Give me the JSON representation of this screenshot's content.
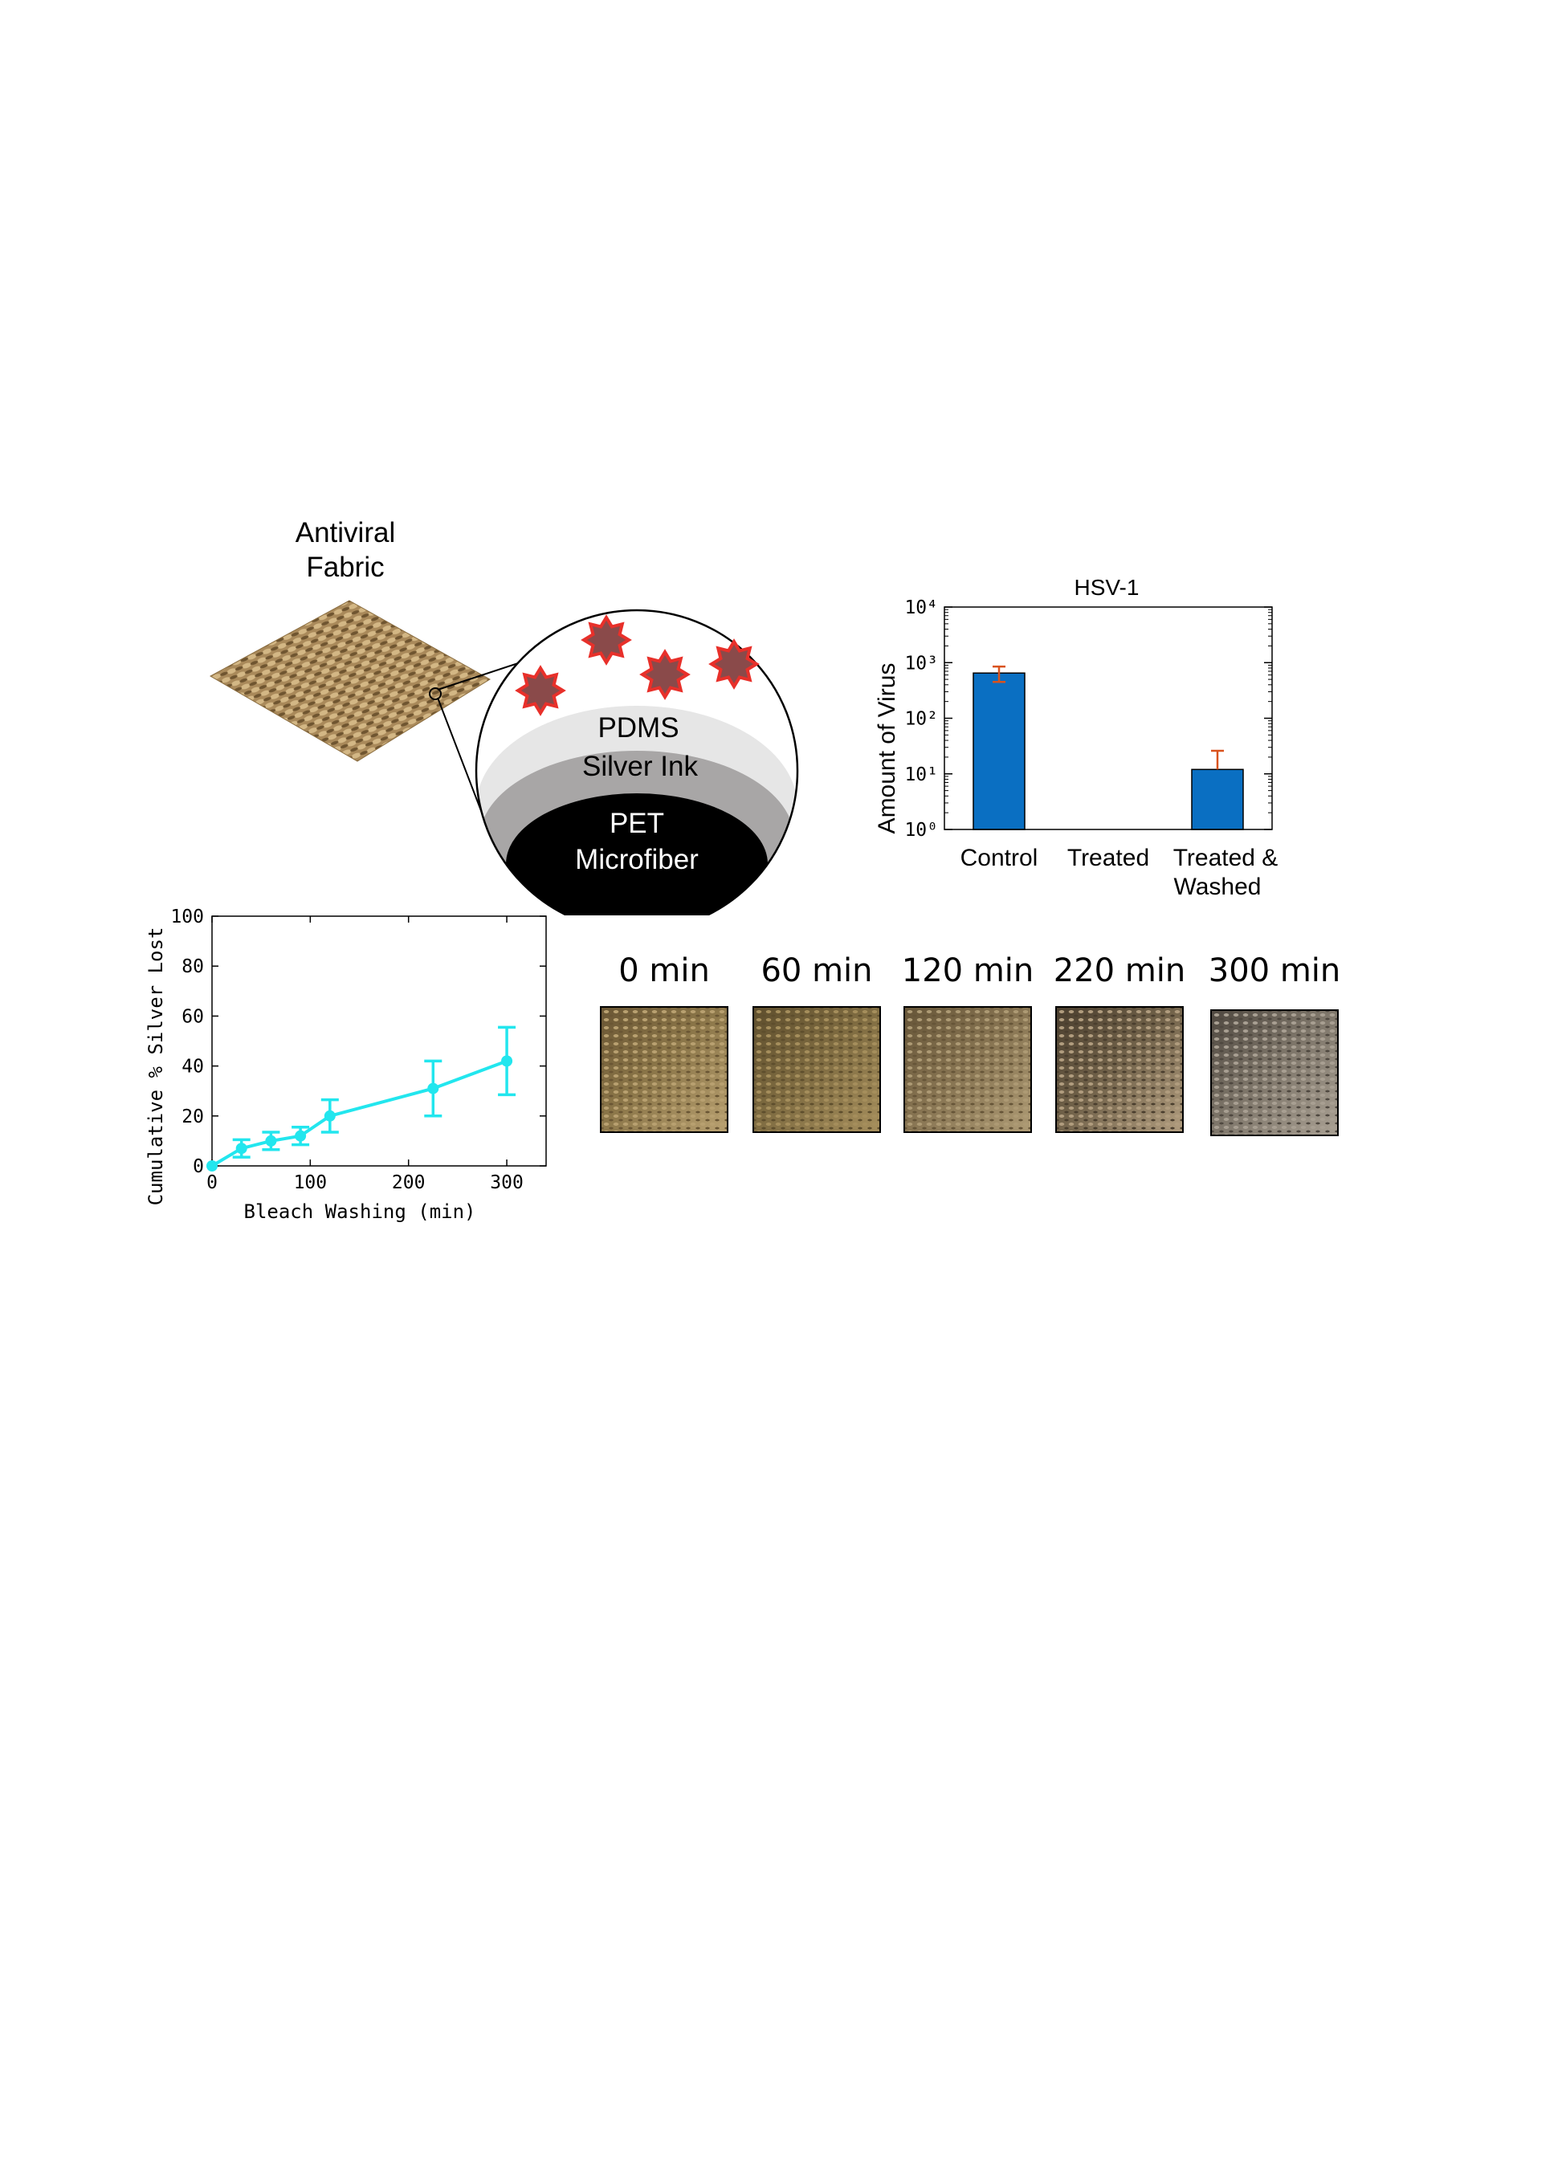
{
  "figure": {
    "fabric_title_line1": "Antiviral",
    "fabric_title_line2": "Fabric",
    "layers": {
      "top": "PDMS",
      "middle": "Silver Ink",
      "core_line1": "PET",
      "core_line2": "Microfiber"
    },
    "virus_color": "#e8302a",
    "virus_fill": "#8a4a4a"
  },
  "chart_data": [
    {
      "type": "bar",
      "title": "HSV-1",
      "ylabel": "Amount of Virus",
      "yscale": "log",
      "ylim": [
        1,
        10000
      ],
      "y_tick_labels": [
        "10⁰",
        "10¹",
        "10²",
        "10³",
        "10⁴"
      ],
      "categories": [
        "Control",
        "Treated",
        "Treated &\nWashed"
      ],
      "category_line1": [
        "Control",
        "Treated",
        "Treated &"
      ],
      "category_line2": [
        "",
        "",
        "Washed"
      ],
      "values": [
        650,
        0,
        12
      ],
      "error_upper": [
        850,
        0,
        26
      ],
      "error_lower": [
        450,
        0,
        12
      ],
      "bar_color": "#0a6fc2",
      "error_color": "#d9531e"
    },
    {
      "type": "line",
      "xlabel": "Bleach Washing (min)",
      "ylabel": "Cumulative % Silver Lost",
      "xlim": [
        0,
        340
      ],
      "ylim": [
        0,
        100
      ],
      "x_ticks": [
        0,
        100,
        200,
        300
      ],
      "y_ticks": [
        0,
        20,
        40,
        60,
        80,
        100
      ],
      "x": [
        0,
        30,
        60,
        90,
        120,
        225,
        300
      ],
      "y": [
        0,
        7,
        10,
        12,
        20,
        31,
        42
      ],
      "yerr": [
        0,
        3.5,
        3.5,
        3.5,
        6.5,
        11,
        13.5
      ],
      "color": "#22e6ee"
    }
  ],
  "photos": [
    {
      "label": "0 min",
      "base": "#8a7548",
      "dark": "#6a5634",
      "light": "#b8a070"
    },
    {
      "label": "60 min",
      "base": "#7d6a40",
      "dark": "#5e4e2d",
      "light": "#a58e5c"
    },
    {
      "label": "120 min",
      "base": "#857250",
      "dark": "#665538",
      "light": "#ad9a74"
    },
    {
      "label": "220 min",
      "base": "#6f6048",
      "dark": "#4a3e2e",
      "light": "#b09c7e"
    },
    {
      "label": "300 min",
      "base": "#7c7468",
      "dark": "#4f4840",
      "light": "#a89f92"
    }
  ]
}
